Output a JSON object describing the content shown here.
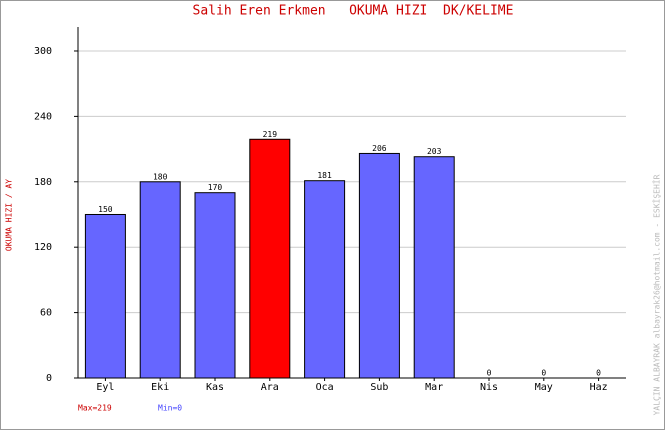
{
  "chart_data": {
    "type": "bar",
    "title": "Salih Eren Erkmen   OKUMA HIZI  DK/KELIME",
    "y_label": "OKUMA HIZI / AY",
    "side_note": "YALÇIN ALBAYRAK  albayrak26@hotmail.com - ESKİŞEHİR",
    "max_note": "Max=219",
    "min_note": "Min=0",
    "categories": [
      "Eyl",
      "Eki",
      "Kas",
      "Ara",
      "Oca",
      "Sub",
      "Mar",
      "Nis",
      "May",
      "Haz"
    ],
    "values": [
      150,
      180,
      170,
      219,
      181,
      206,
      203,
      0,
      0,
      0
    ],
    "colors": [
      "#6666ff",
      "#6666ff",
      "#6666ff",
      "#ff0000",
      "#6666ff",
      "#6666ff",
      "#6666ff",
      "#6666ff",
      "#6666ff",
      "#6666ff"
    ],
    "ylim": [
      0,
      322
    ],
    "yticks": [
      0,
      60,
      120,
      180,
      240,
      300
    ],
    "grid": true
  }
}
